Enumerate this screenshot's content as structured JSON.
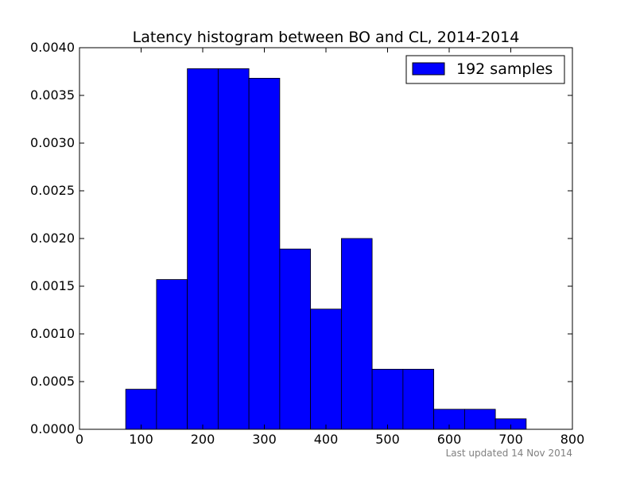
{
  "chart_data": {
    "type": "bar",
    "title": "Latency histogram between BO and CL, 2014-2014",
    "xlabel": "",
    "ylabel": "",
    "xlim": [
      0,
      800
    ],
    "ylim": [
      0,
      0.004
    ],
    "xticks": [
      0,
      100,
      200,
      300,
      400,
      500,
      600,
      700,
      800
    ],
    "xtick_labels": [
      "0",
      "100",
      "200",
      "300",
      "400",
      "500",
      "600",
      "700",
      "800"
    ],
    "yticks": [
      0,
      0.0005,
      0.001,
      0.0015,
      0.002,
      0.0025,
      0.003,
      0.0035,
      0.004
    ],
    "ytick_labels": [
      "0.0000",
      "0.0005",
      "0.0010",
      "0.0015",
      "0.0020",
      "0.0025",
      "0.0030",
      "0.0035",
      "0.0040"
    ],
    "grid": false,
    "legend_position": "top-right",
    "bar_color": "#0000ff",
    "series": [
      {
        "name": "192 samples",
        "bins": [
          [
            75,
            125
          ],
          [
            125,
            175
          ],
          [
            175,
            225
          ],
          [
            225,
            275
          ],
          [
            275,
            325
          ],
          [
            325,
            375
          ],
          [
            375,
            425
          ],
          [
            425,
            475
          ],
          [
            475,
            525
          ],
          [
            525,
            575
          ],
          [
            575,
            625
          ],
          [
            625,
            675
          ],
          [
            675,
            725
          ]
        ],
        "values": [
          0.00042,
          0.00157,
          0.00378,
          0.00378,
          0.00368,
          0.00189,
          0.00126,
          0.002,
          0.00063,
          0.00063,
          0.00021,
          0.00021,
          0.00011
        ]
      }
    ]
  },
  "footer": {
    "text": "Last updated 14 Nov 2014"
  }
}
